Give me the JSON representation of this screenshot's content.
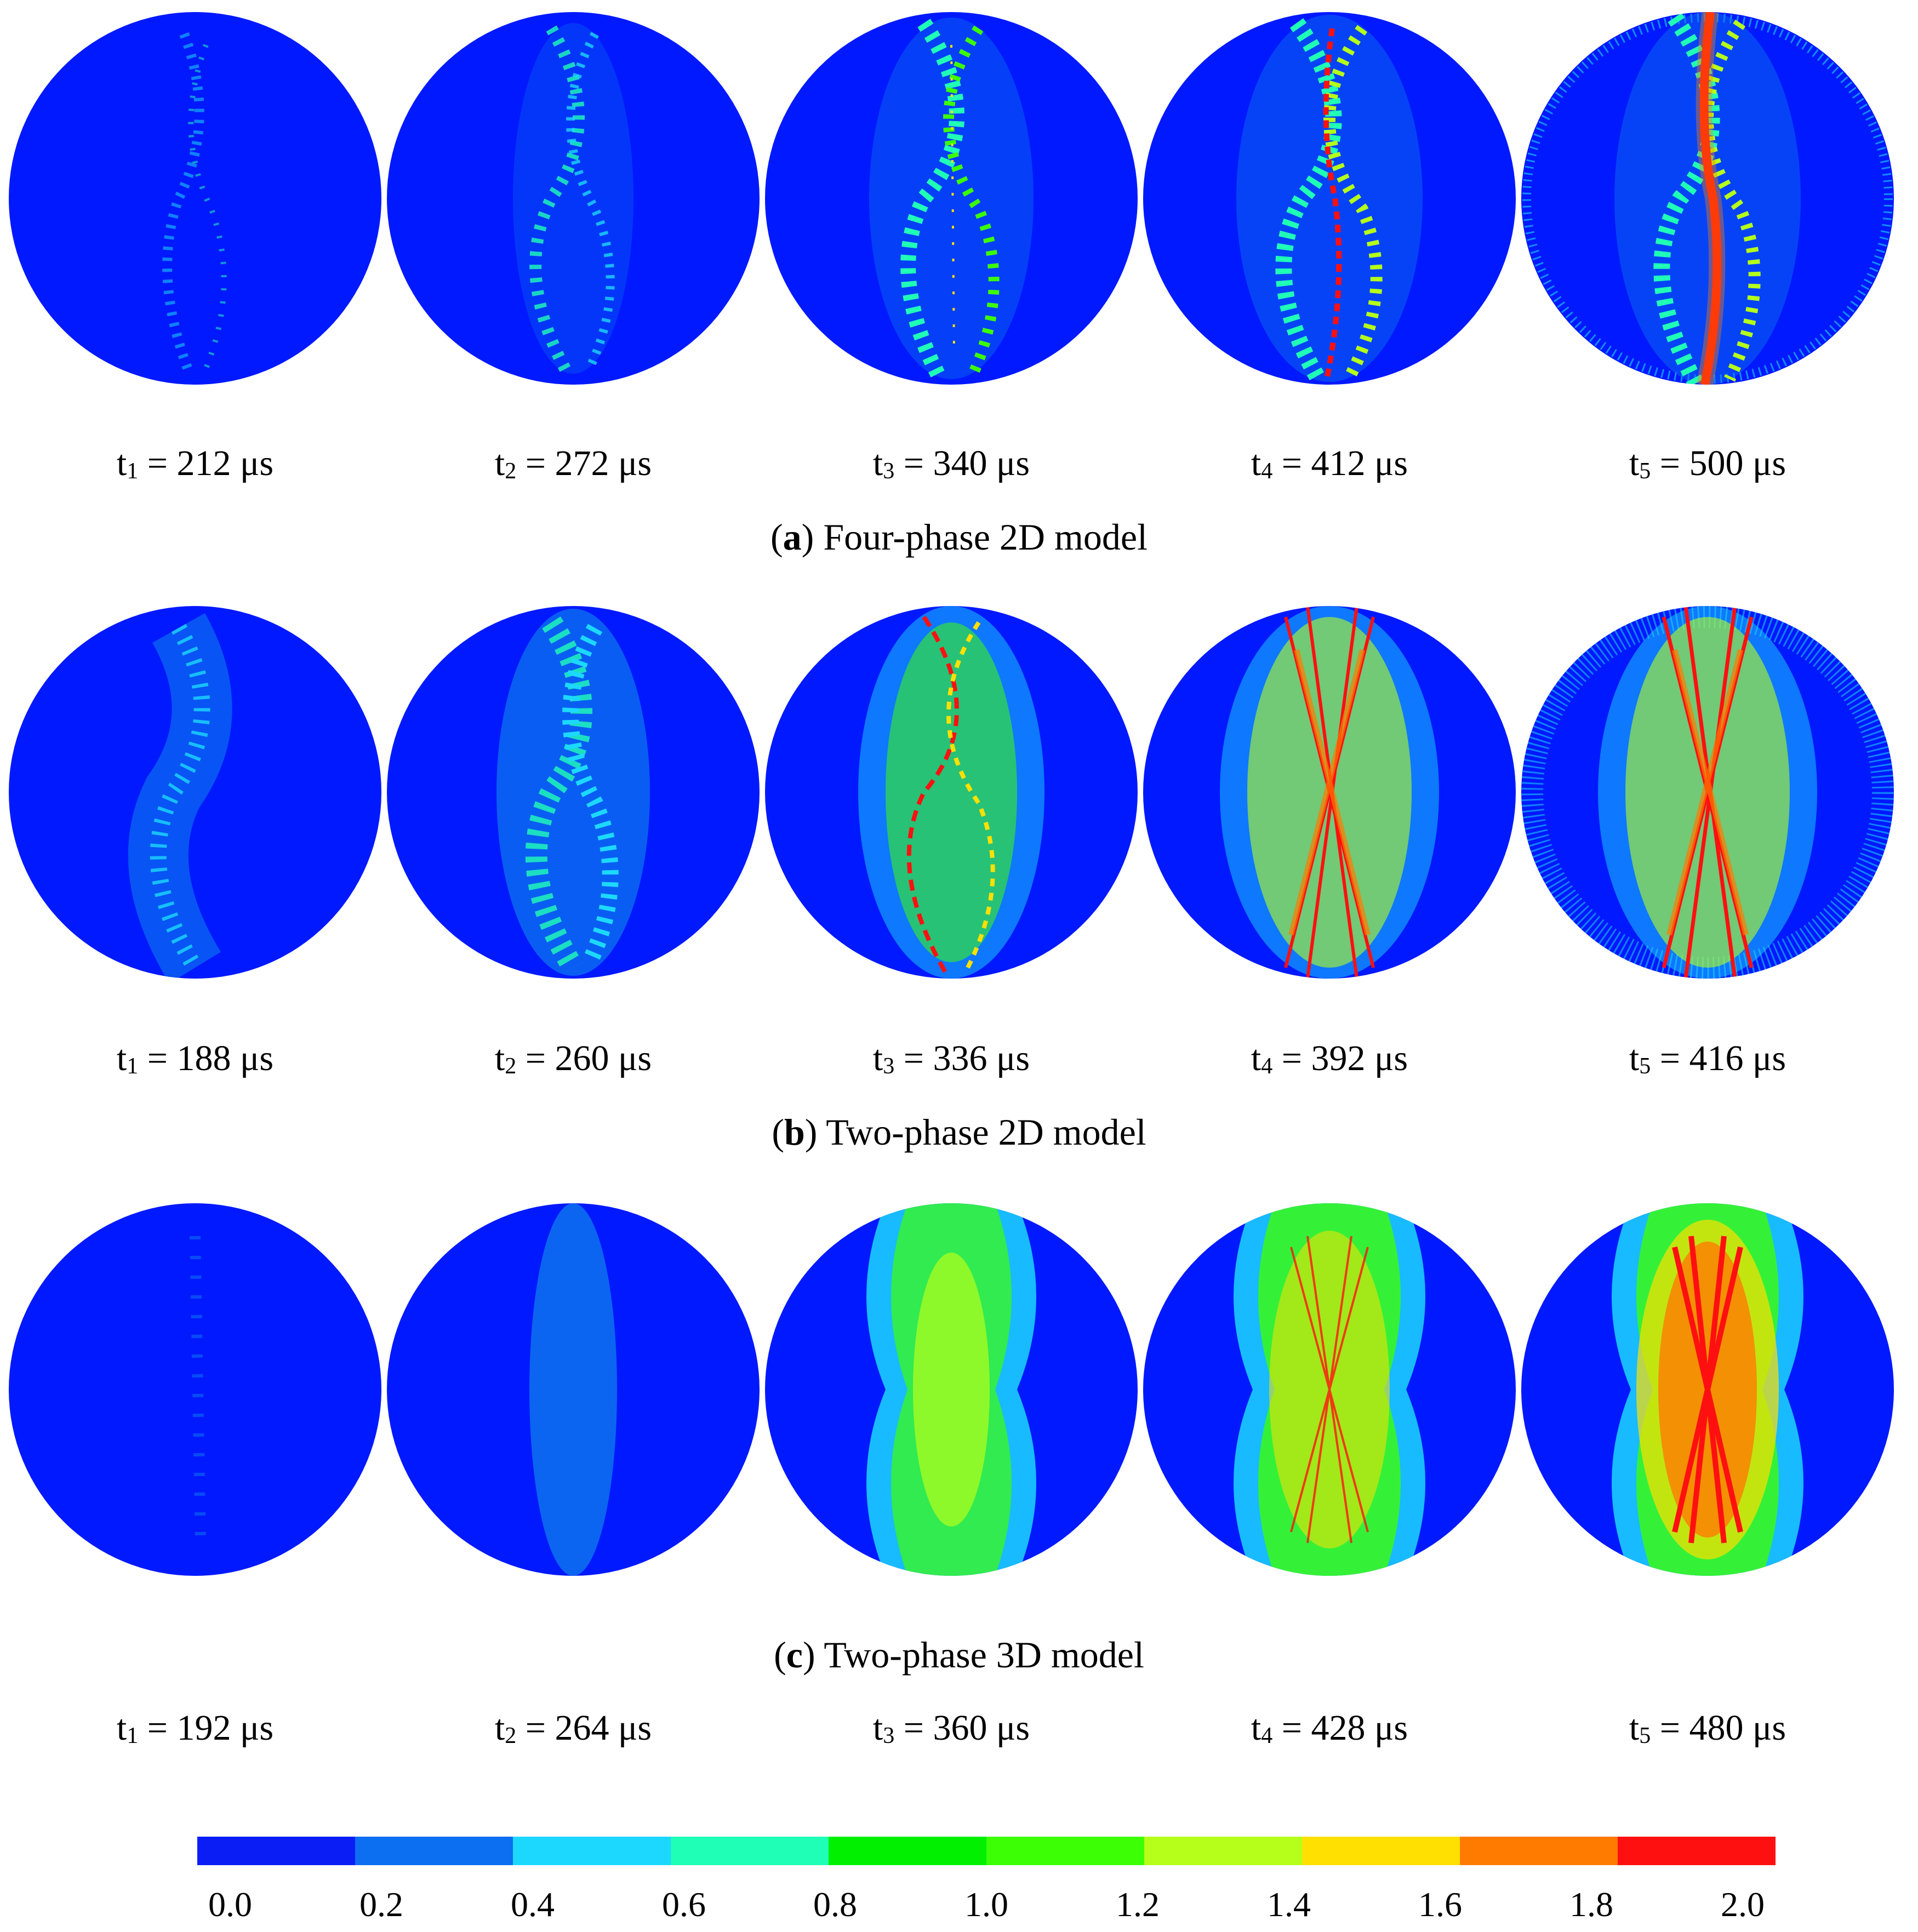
{
  "colors": {
    "background": "#0019ff",
    "colorbar": [
      "#0a1df5",
      "#0c6ef0",
      "#1cd8ff",
      "#1fffb6",
      "#00f000",
      "#3cff06",
      "#b5ff1a",
      "#ffe000",
      "#ff7b00",
      "#ff1010"
    ]
  },
  "panels": [
    {
      "letter": "a",
      "caption": " Four-phase 2D model",
      "times": [
        {
          "sym": "t",
          "sub": "1",
          "text": " = 212 μs"
        },
        {
          "sym": "t",
          "sub": "2",
          "text": " = 272 μs"
        },
        {
          "sym": "t",
          "sub": "3",
          "text": " = 340 μs"
        },
        {
          "sym": "t",
          "sub": "4",
          "text": " = 412 μs"
        },
        {
          "sym": "t",
          "sub": "5",
          "text": " = 500 μs"
        }
      ]
    },
    {
      "letter": "b",
      "caption": " Two-phase 2D model",
      "times": [
        {
          "sym": "t",
          "sub": "1",
          "text": " = 188 μs"
        },
        {
          "sym": "t",
          "sub": "2",
          "text": " = 260 μs"
        },
        {
          "sym": "t",
          "sub": "3",
          "text": " = 336 μs"
        },
        {
          "sym": "t",
          "sub": "4",
          "text": " = 392 μs"
        },
        {
          "sym": "t",
          "sub": "5",
          "text": " = 416 μs"
        }
      ]
    },
    {
      "letter": "c",
      "caption": " Two-phase 3D model",
      "times": [
        {
          "sym": "t",
          "sub": "1",
          "text": " = 192 μs"
        },
        {
          "sym": "t",
          "sub": "2",
          "text": " = 264 μs"
        },
        {
          "sym": "t",
          "sub": "3",
          "text": " = 360 μs"
        },
        {
          "sym": "t",
          "sub": "4",
          "text": " = 428 μs"
        },
        {
          "sym": "t",
          "sub": "5",
          "text": " = 480 μs"
        }
      ]
    }
  ],
  "colorbar_ticks": [
    "0.0",
    "0.2",
    "0.4",
    "0.6",
    "0.8",
    "1.0",
    "1.2",
    "1.4",
    "1.6",
    "1.8",
    "2.0"
  ]
}
